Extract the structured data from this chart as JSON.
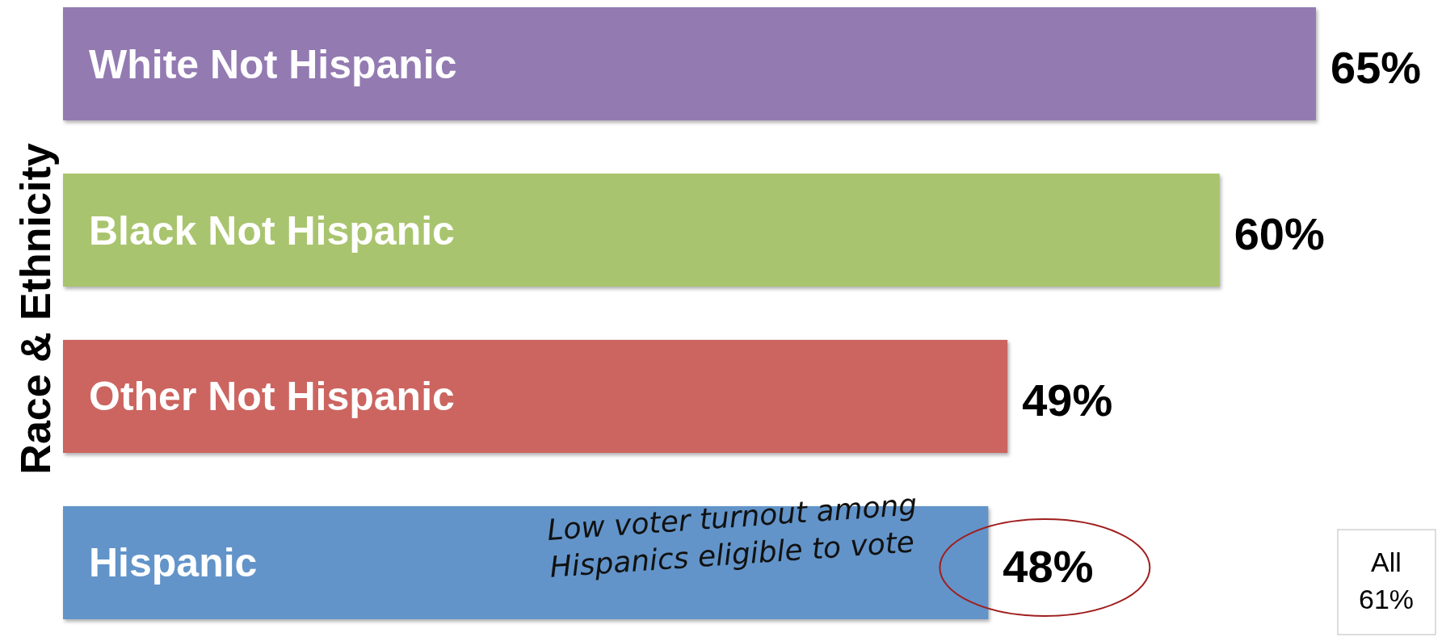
{
  "chart_data": {
    "type": "bar",
    "orientation": "horizontal",
    "ylabel": "Race & Ethnicity",
    "categories": [
      "White Not Hispanic",
      "Black Not Hispanic",
      "Other Not Hispanic",
      "Hispanic"
    ],
    "values": [
      65,
      60,
      49,
      48
    ],
    "colors": [
      "#937bb2",
      "#a9c46e",
      "#cc6560",
      "#6294c9"
    ],
    "value_labels": [
      "65%",
      "60%",
      "49%",
      "48%"
    ],
    "annotations": [
      "Low voter turnout among\nHispanics eligible to vote",
      "All\n61%"
    ]
  }
}
